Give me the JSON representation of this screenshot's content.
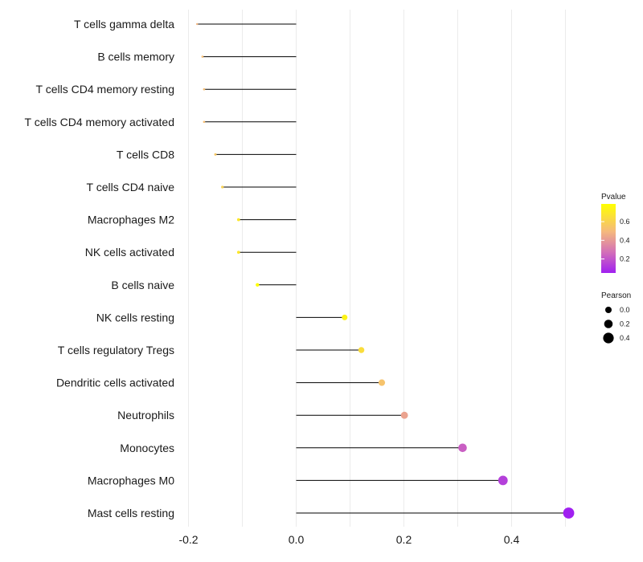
{
  "chart_data": {
    "type": "lollipop",
    "title": "",
    "xlabel": "",
    "ylabel": "",
    "xlim": [
      -0.2,
      0.5
    ],
    "x_ticks": [
      -0.2,
      0.0,
      0.2,
      0.4
    ],
    "x_tick_labels": [
      "-0.2",
      "0.0",
      "0.2",
      "0.4"
    ],
    "grid": true,
    "categories": [
      "T cells gamma delta",
      "B cells memory",
      "T cells CD4 memory resting",
      "T cells CD4 memory activated",
      "T cells CD8",
      "T cells CD4 naive",
      "Macrophages M2",
      "NK cells activated",
      "B cells naive",
      "NK cells resting",
      "T cells regulatory  Tregs ",
      "Dendritic cells activated",
      "Neutrophils",
      "Monocytes",
      "Macrophages M0",
      "Mast cells resting"
    ],
    "pearson": [
      -0.184,
      -0.174,
      -0.171,
      -0.171,
      -0.15,
      -0.137,
      -0.107,
      -0.107,
      -0.072,
      0.09,
      0.121,
      0.159,
      0.201,
      0.309,
      0.384,
      0.506
    ],
    "pvalue": [
      0.49,
      0.52,
      0.52,
      0.52,
      0.56,
      0.6,
      0.69,
      0.69,
      0.79,
      0.74,
      0.65,
      0.54,
      0.44,
      0.25,
      0.15,
      0.05
    ],
    "legend_pvalue": {
      "title": "Pvalue",
      "ticks": [
        "0.6",
        "0.4",
        "0.2"
      ],
      "tick_values": [
        0.6,
        0.4,
        0.2
      ],
      "range": [
        0.05,
        0.79
      ],
      "colors": [
        "#FFFF00",
        "#F5B97D",
        "#D36FB8",
        "#A020F0"
      ]
    },
    "legend_pearson": {
      "title": "Pearson",
      "ticks": [
        "0.0",
        "0.2",
        "0.4"
      ],
      "tick_values": [
        0.0,
        0.2,
        0.4
      ]
    },
    "legend_position": "right"
  }
}
